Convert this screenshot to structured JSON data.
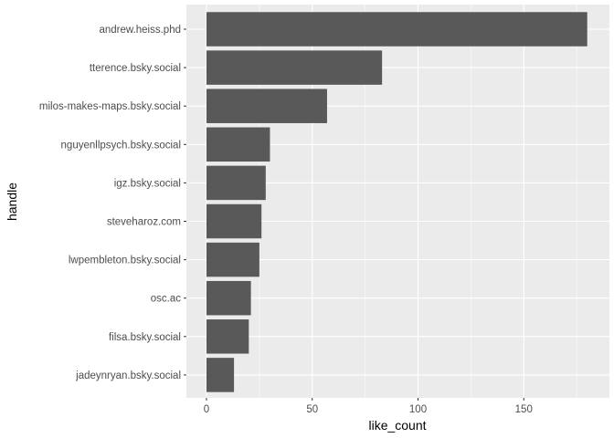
{
  "chart_data": {
    "type": "bar",
    "orientation": "horizontal",
    "xlabel": "like_count",
    "ylabel": "handle",
    "xlim": [
      -10,
      190
    ],
    "xticks": [
      0,
      50,
      100,
      150
    ],
    "xtick_labels": [
      "0",
      "50",
      "100",
      "150"
    ],
    "grid": true,
    "legend": "none",
    "categories": [
      "andrew.heiss.phd",
      "tterence.bsky.social",
      "milos-makes-maps.bsky.social",
      "nguyenllpsych.bsky.social",
      "igz.bsky.social",
      "steveharoz.com",
      "lwpembleton.bsky.social",
      "osc.ac",
      "filsa.bsky.social",
      "jadeynryan.bsky.social"
    ],
    "values": [
      180,
      83,
      57,
      30,
      28,
      26,
      25,
      21,
      20,
      13
    ]
  },
  "colors": {
    "panel_background": "#ebebeb",
    "grid_major": "#ffffff",
    "bar_fill": "#595959",
    "tick_text": "#4d4d4d",
    "tick_mark": "#333333",
    "title_text": "#000000"
  }
}
